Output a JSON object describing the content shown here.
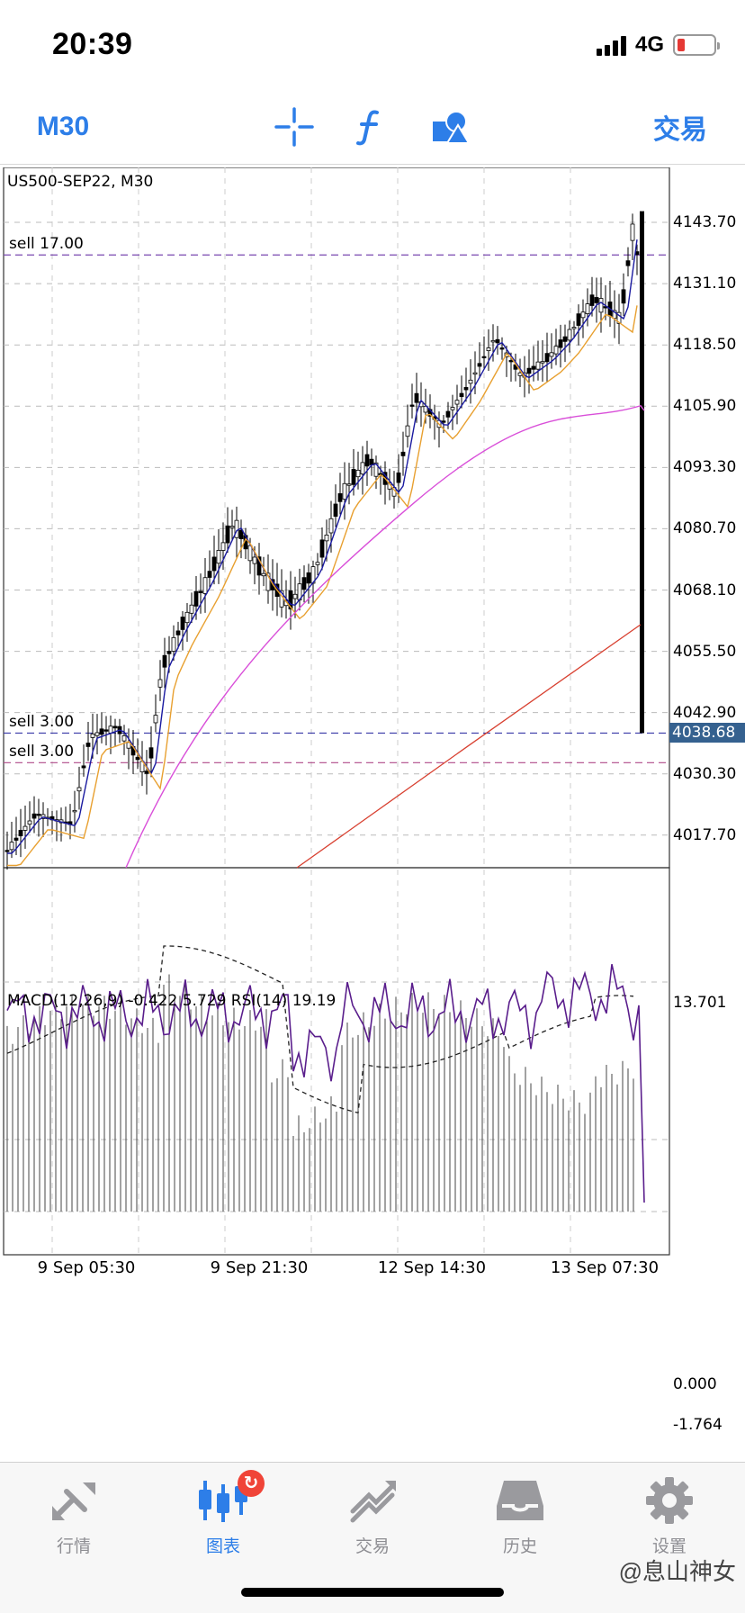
{
  "status": {
    "time": "20:39",
    "network": "4G",
    "battery_level": 0.15
  },
  "toolbar": {
    "timeframe": "M30",
    "crosshair_icon": "crosshair-icon",
    "indicator_icon": "function-icon",
    "objects_icon": "shapes-icon",
    "trade_label": "交易"
  },
  "chart": {
    "symbol_label": "US500-SEP22, M30",
    "indicator_label": "MACD(12,26,9) -0.422 5.729 RSI(14) 19.19",
    "current_price": "4038.68",
    "price_axis": [
      "4143.70",
      "4131.10",
      "4118.50",
      "4105.90",
      "4093.30",
      "4080.70",
      "4068.10",
      "4055.50",
      "4042.90",
      "4030.30",
      "4017.70"
    ],
    "sub_axis": {
      "top": "13.701",
      "zero": "0.000",
      "bottom": "-1.764"
    },
    "time_axis": [
      "9 Sep 05:30",
      "9 Sep 21:30",
      "12 Sep 14:30",
      "13 Sep 07:30"
    ],
    "orders": [
      {
        "label": "sell 17.00",
        "price": 4137.0,
        "color": "#7a4ab0"
      },
      {
        "label": "sell 3.00",
        "price": 4038.68,
        "color": "#3a3aa8"
      },
      {
        "label": "sell 3.00",
        "price": 4032.6,
        "color": "#b04a8a"
      }
    ],
    "colors": {
      "ma_fast": "#1a1aa0",
      "ma_mid": "#e8a030",
      "ma_slow": "#d94fd9",
      "ma_long": "#d84030",
      "rsi": "#5a1e8c"
    }
  },
  "chart_data": {
    "type": "line",
    "title": "US500-SEP22, M30",
    "price_range": [
      4011,
      4155
    ],
    "macd_range": [
      -1.764,
      13.701
    ],
    "current_price": 4038.68
  },
  "tabs": [
    {
      "label": "行情",
      "icon": "quotes-icon"
    },
    {
      "label": "图表",
      "icon": "chart-icon",
      "badge": "↻"
    },
    {
      "label": "交易",
      "icon": "trade-icon"
    },
    {
      "label": "历史",
      "icon": "history-icon"
    },
    {
      "label": "设置",
      "icon": "settings-icon"
    }
  ],
  "watermark": "@息山神女"
}
